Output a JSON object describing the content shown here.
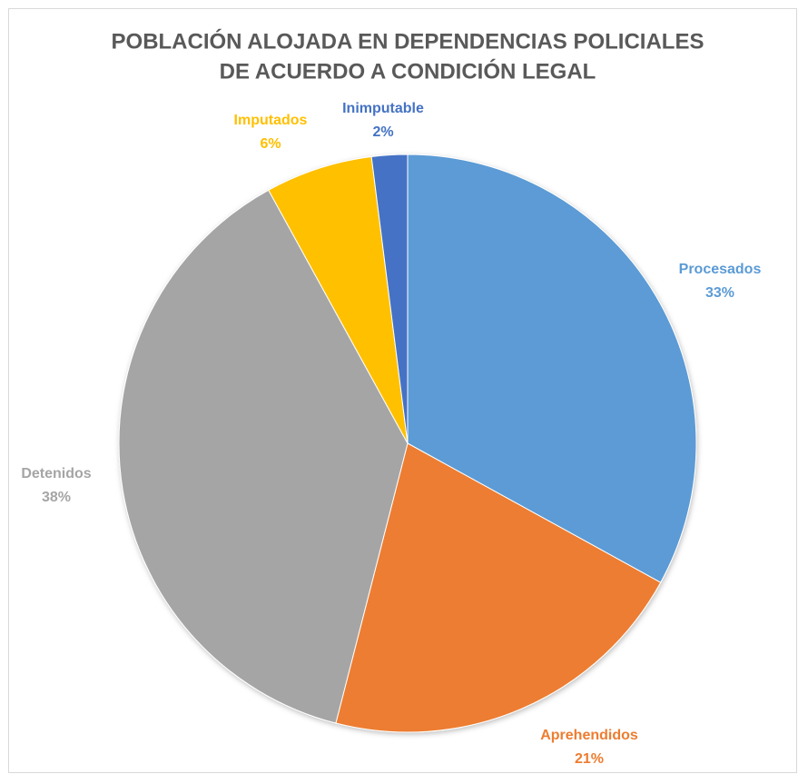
{
  "chart_data": {
    "type": "pie",
    "title": [
      "POBLACIÓN ALOJADA EN DEPENDENCIAS POLICIALES",
      "DE ACUERDO A CONDICIÓN LEGAL"
    ],
    "categories": [
      "Procesados",
      "Aprehendidos",
      "Detenidos",
      "Imputados",
      "Inimputable"
    ],
    "values": [
      33,
      21,
      38,
      6,
      2
    ],
    "value_labels": [
      "33%",
      "21%",
      "38%",
      "6%",
      "2%"
    ],
    "colors": [
      "#5b9bd5",
      "#ed7d31",
      "#a5a5a5",
      "#ffc000",
      "#4472c4"
    ]
  }
}
